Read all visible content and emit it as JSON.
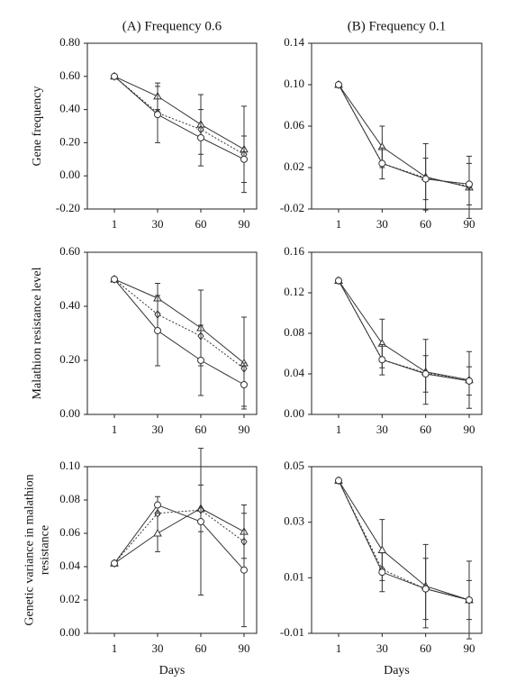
{
  "chart_data": [
    {
      "type": "line",
      "title": "(A) Frequency 0.6",
      "ylabel": [
        "Gene frequency"
      ],
      "categories": [
        "1",
        "30",
        "60",
        "90"
      ],
      "ylim": [
        -0.2,
        0.8
      ],
      "yticks": [
        {
          "value": -0.2,
          "label": "-0.20"
        },
        {
          "value": 0,
          "label": "0.00"
        },
        {
          "value": 0.2,
          "label": "0.20"
        },
        {
          "value": 0.4,
          "label": "0.40"
        },
        {
          "value": 0.6,
          "label": "0.60"
        },
        {
          "value": 0.8,
          "label": "0.80"
        }
      ],
      "series": [
        {
          "color": "#333333",
          "marker": "triangle",
          "dash": "solid",
          "values": [
            0.6,
            0.48,
            0.31,
            0.16
          ],
          "errors": [
            0,
            0.08,
            0.18,
            0.26
          ]
        },
        {
          "color": "#333333",
          "marker": "diamond",
          "dash": "dotted",
          "values": [
            0.6,
            0.38,
            0.28,
            0.13
          ]
        },
        {
          "color": "#333333",
          "marker": "circle",
          "dash": "solid",
          "values": [
            0.6,
            0.37,
            0.23,
            0.1
          ],
          "errors": [
            0,
            0.17,
            0.17,
            0.14
          ]
        }
      ]
    },
    {
      "type": "line",
      "title": "(B) Frequency 0.1",
      "categories": [
        "1",
        "30",
        "60",
        "90"
      ],
      "ylim": [
        -0.02,
        0.14
      ],
      "yticks": [
        -0.02,
        0.02,
        0.06,
        {
          "value": 0.1,
          "label": "0.10"
        },
        0.14
      ],
      "series": [
        {
          "color": "#333333",
          "marker": "triangle",
          "dash": "solid",
          "values": [
            0.1,
            0.04,
            0.011,
            0.001
          ],
          "errors": [
            0,
            0.02,
            0.032,
            0.03
          ]
        },
        {
          "color": "#333333",
          "marker": "diamond",
          "dash": "dotted",
          "values": [
            0.1,
            0.024,
            0.01,
            0.002
          ]
        },
        {
          "color": "#333333",
          "marker": "circle",
          "dash": "solid",
          "values": [
            0.1,
            0.024,
            0.009,
            0.004
          ],
          "errors": [
            0,
            0.015,
            0.02,
            0.02
          ]
        }
      ]
    },
    {
      "type": "line",
      "ylabel": [
        "Malathion resistance level"
      ],
      "categories": [
        "1",
        "30",
        "60",
        "90"
      ],
      "ylim": [
        0,
        0.6
      ],
      "yticks": [
        {
          "value": 0,
          "label": "0.00"
        },
        {
          "value": 0.2,
          "label": "0.20"
        },
        {
          "value": 0.4,
          "label": "0.40"
        },
        {
          "value": 0.6,
          "label": "0.60"
        }
      ],
      "series": [
        {
          "color": "#333333",
          "marker": "triangle",
          "dash": "solid",
          "values": [
            0.5,
            0.43,
            0.32,
            0.19
          ],
          "errors": [
            0,
            0.055,
            0.14,
            0.17
          ]
        },
        {
          "color": "#333333",
          "marker": "diamond",
          "dash": "dotted",
          "values": [
            0.5,
            0.37,
            0.29,
            0.17
          ]
        },
        {
          "color": "#333333",
          "marker": "circle",
          "dash": "solid",
          "values": [
            0.5,
            0.31,
            0.2,
            0.11
          ],
          "errors": [
            0,
            0.13,
            0.13,
            0.08
          ]
        }
      ]
    },
    {
      "type": "line",
      "categories": [
        "1",
        "30",
        "60",
        "90"
      ],
      "ylim": [
        0,
        0.16
      ],
      "yticks": [
        {
          "value": 0,
          "label": "0.00"
        },
        0.04,
        0.08,
        0.12,
        0.16
      ],
      "series": [
        {
          "color": "#333333",
          "marker": "triangle",
          "dash": "solid",
          "values": [
            0.132,
            0.07,
            0.042,
            0.034
          ],
          "errors": [
            0,
            0.024,
            0.032,
            0.028
          ]
        },
        {
          "color": "#333333",
          "marker": "diamond",
          "dash": "dotted",
          "values": [
            0.132,
            0.054,
            0.041,
            0.033
          ]
        },
        {
          "color": "#333333",
          "marker": "circle",
          "dash": "solid",
          "values": [
            0.132,
            0.054,
            0.04,
            0.033
          ],
          "errors": [
            0,
            0.015,
            0.018,
            0.014
          ]
        }
      ]
    },
    {
      "type": "line",
      "ylabel": [
        "Genetic variance in malathion",
        "resistance"
      ],
      "xlabel": "Days",
      "categories": [
        "1",
        "30",
        "60",
        "90"
      ],
      "ylim": [
        0,
        0.1
      ],
      "yticks": [
        {
          "value": 0,
          "label": "0.00"
        },
        0.02,
        0.04,
        0.06,
        0.08,
        {
          "value": 0.1,
          "label": "0.10"
        }
      ],
      "series": [
        {
          "color": "#333333",
          "marker": "triangle",
          "dash": "solid",
          "values": [
            0.042,
            0.06,
            0.075,
            0.061
          ],
          "errors": [
            0,
            0.011,
            0.014,
            0.016
          ]
        },
        {
          "color": "#333333",
          "marker": "diamond",
          "dash": "dotted",
          "values": [
            0.042,
            0.072,
            0.074,
            0.055
          ]
        },
        {
          "color": "#333333",
          "marker": "circle",
          "dash": "solid",
          "values": [
            0.042,
            0.077,
            0.067,
            0.038
          ],
          "errors": [
            0,
            0.005,
            0.044,
            0.034
          ]
        }
      ]
    },
    {
      "type": "line",
      "xlabel": "Days",
      "categories": [
        "1",
        "30",
        "60",
        "90"
      ],
      "ylim": [
        -0.01,
        0.05
      ],
      "yticks": [
        -0.01,
        0.01,
        0.03,
        0.05
      ],
      "series": [
        {
          "color": "#333333",
          "marker": "triangle",
          "dash": "solid",
          "values": [
            0.045,
            0.02,
            0.007,
            0.002
          ],
          "errors": [
            0,
            0.011,
            0.015,
            0.014
          ]
        },
        {
          "color": "#333333",
          "marker": "diamond",
          "dash": "dotted",
          "values": [
            0.045,
            0.013,
            0.006,
            0.002
          ]
        },
        {
          "color": "#333333",
          "marker": "circle",
          "dash": "solid",
          "values": [
            0.045,
            0.012,
            0.006,
            0.002
          ],
          "errors": [
            0,
            0.007,
            0.011,
            0.007
          ]
        }
      ]
    }
  ]
}
